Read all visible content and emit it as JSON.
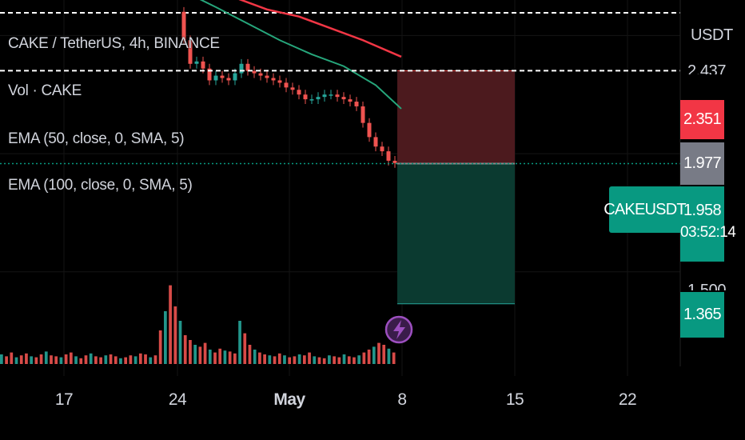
{
  "header": {
    "symbol_line": "CAKE / TetherUS, 4h, BINANCE",
    "volume_line": "Vol · CAKE",
    "ema1_line": "EMA (50, close, 0, SMA, 5)",
    "ema2_line": "EMA (100, close, 0, SMA, 5)"
  },
  "price_axis": {
    "currency": "USDT",
    "partial_top_label": "2.437",
    "partial_bottom_label": "1.500"
  },
  "price_tags": {
    "stop": {
      "value": "2.351",
      "color": "#f23645"
    },
    "prev": {
      "value": "1.977",
      "color": "#787b86"
    },
    "current": {
      "value": "1.958",
      "countdown": "03:52:14",
      "color": "#089981"
    },
    "target": {
      "value": "1.365",
      "color": "#089981"
    }
  },
  "symbol_tag": "CAKEUSDT",
  "x_axis": [
    "17",
    "24",
    "May",
    "8",
    "15",
    "22"
  ],
  "colors": {
    "background": "#000000",
    "up": "#26a69a",
    "down": "#ef5350",
    "ema50": "#26a67b",
    "ema100": "#f23645",
    "risk_zone": "#4c1a1e",
    "reward_zone": "#0b3a30",
    "event_icon": "#9c4fbf"
  },
  "icons": {
    "event": "lightning-icon"
  },
  "chart_data": {
    "type": "candlestick",
    "title": "CAKE / TetherUS, 4h, BINANCE",
    "timeframe": "4h",
    "y_unit": "USDT",
    "ylim": [
      1.1,
      2.65
    ],
    "x_ticks": [
      "17",
      "24",
      "May",
      "8",
      "15",
      "22"
    ],
    "price": {
      "start_date": "2023-04-24",
      "points": [
        [
          0,
          2.6
        ],
        [
          1,
          2.48
        ],
        [
          2,
          2.38
        ],
        [
          3,
          2.39
        ],
        [
          4,
          2.36
        ],
        [
          5,
          2.31
        ],
        [
          6,
          2.33
        ],
        [
          7,
          2.32
        ],
        [
          8,
          2.31
        ],
        [
          9,
          2.34
        ],
        [
          10,
          2.38
        ],
        [
          11,
          2.35
        ],
        [
          12,
          2.34
        ],
        [
          13,
          2.33
        ],
        [
          14,
          2.32
        ],
        [
          15,
          2.31
        ],
        [
          16,
          2.3
        ],
        [
          17,
          2.28
        ],
        [
          18,
          2.27
        ],
        [
          19,
          2.25
        ],
        [
          20,
          2.23
        ],
        [
          21,
          2.23
        ],
        [
          22,
          2.24
        ],
        [
          23,
          2.25
        ],
        [
          24,
          2.25
        ],
        [
          25,
          2.24
        ],
        [
          26,
          2.23
        ],
        [
          27,
          2.22
        ],
        [
          28,
          2.2
        ],
        [
          29,
          2.13
        ],
        [
          30,
          2.07
        ],
        [
          31,
          2.03
        ],
        [
          32,
          2.01
        ],
        [
          33,
          1.97
        ],
        [
          34,
          1.96
        ]
      ]
    },
    "volume_bars": [
      0.1,
      0.08,
      0.12,
      0.07,
      0.09,
      0.11,
      0.08,
      0.07,
      0.1,
      0.13,
      0.09,
      0.08,
      0.07,
      0.1,
      0.12,
      0.08,
      0.06,
      0.09,
      0.11,
      0.08,
      0.07,
      0.09,
      0.1,
      0.08,
      0.06,
      0.07,
      0.09,
      0.08,
      0.11,
      0.1,
      0.07,
      0.09,
      0.35,
      0.55,
      0.82,
      0.6,
      0.45,
      0.3,
      0.25,
      0.2,
      0.18,
      0.22,
      0.15,
      0.12,
      0.16,
      0.14,
      0.13,
      0.11,
      0.45,
      0.32,
      0.2,
      0.15,
      0.12,
      0.1,
      0.09,
      0.08,
      0.11,
      0.09,
      0.07,
      0.08,
      0.1,
      0.09,
      0.12,
      0.08,
      0.07,
      0.06,
      0.09,
      0.08,
      0.07,
      0.1,
      0.08,
      0.07,
      0.09,
      0.12,
      0.15,
      0.18,
      0.22,
      0.2,
      0.16,
      0.12
    ],
    "ema50": [
      [
        0,
        2.7
      ],
      [
        6,
        2.62
      ],
      [
        11,
        2.55
      ],
      [
        16,
        2.48
      ],
      [
        21,
        2.42
      ],
      [
        26,
        2.37
      ],
      [
        31,
        2.29
      ],
      [
        35,
        2.19
      ]
    ],
    "ema100": [
      [
        3,
        2.71
      ],
      [
        9,
        2.66
      ],
      [
        14,
        2.61
      ],
      [
        19,
        2.58
      ],
      [
        24,
        2.53
      ],
      [
        29,
        2.48
      ],
      [
        35,
        2.41
      ]
    ],
    "levels": {
      "stop": 2.351,
      "entry": 1.958,
      "target": 1.365,
      "current": 1.958
    },
    "position": {
      "type": "short",
      "stop": 2.351,
      "entry": 1.958,
      "target": 1.365
    }
  }
}
